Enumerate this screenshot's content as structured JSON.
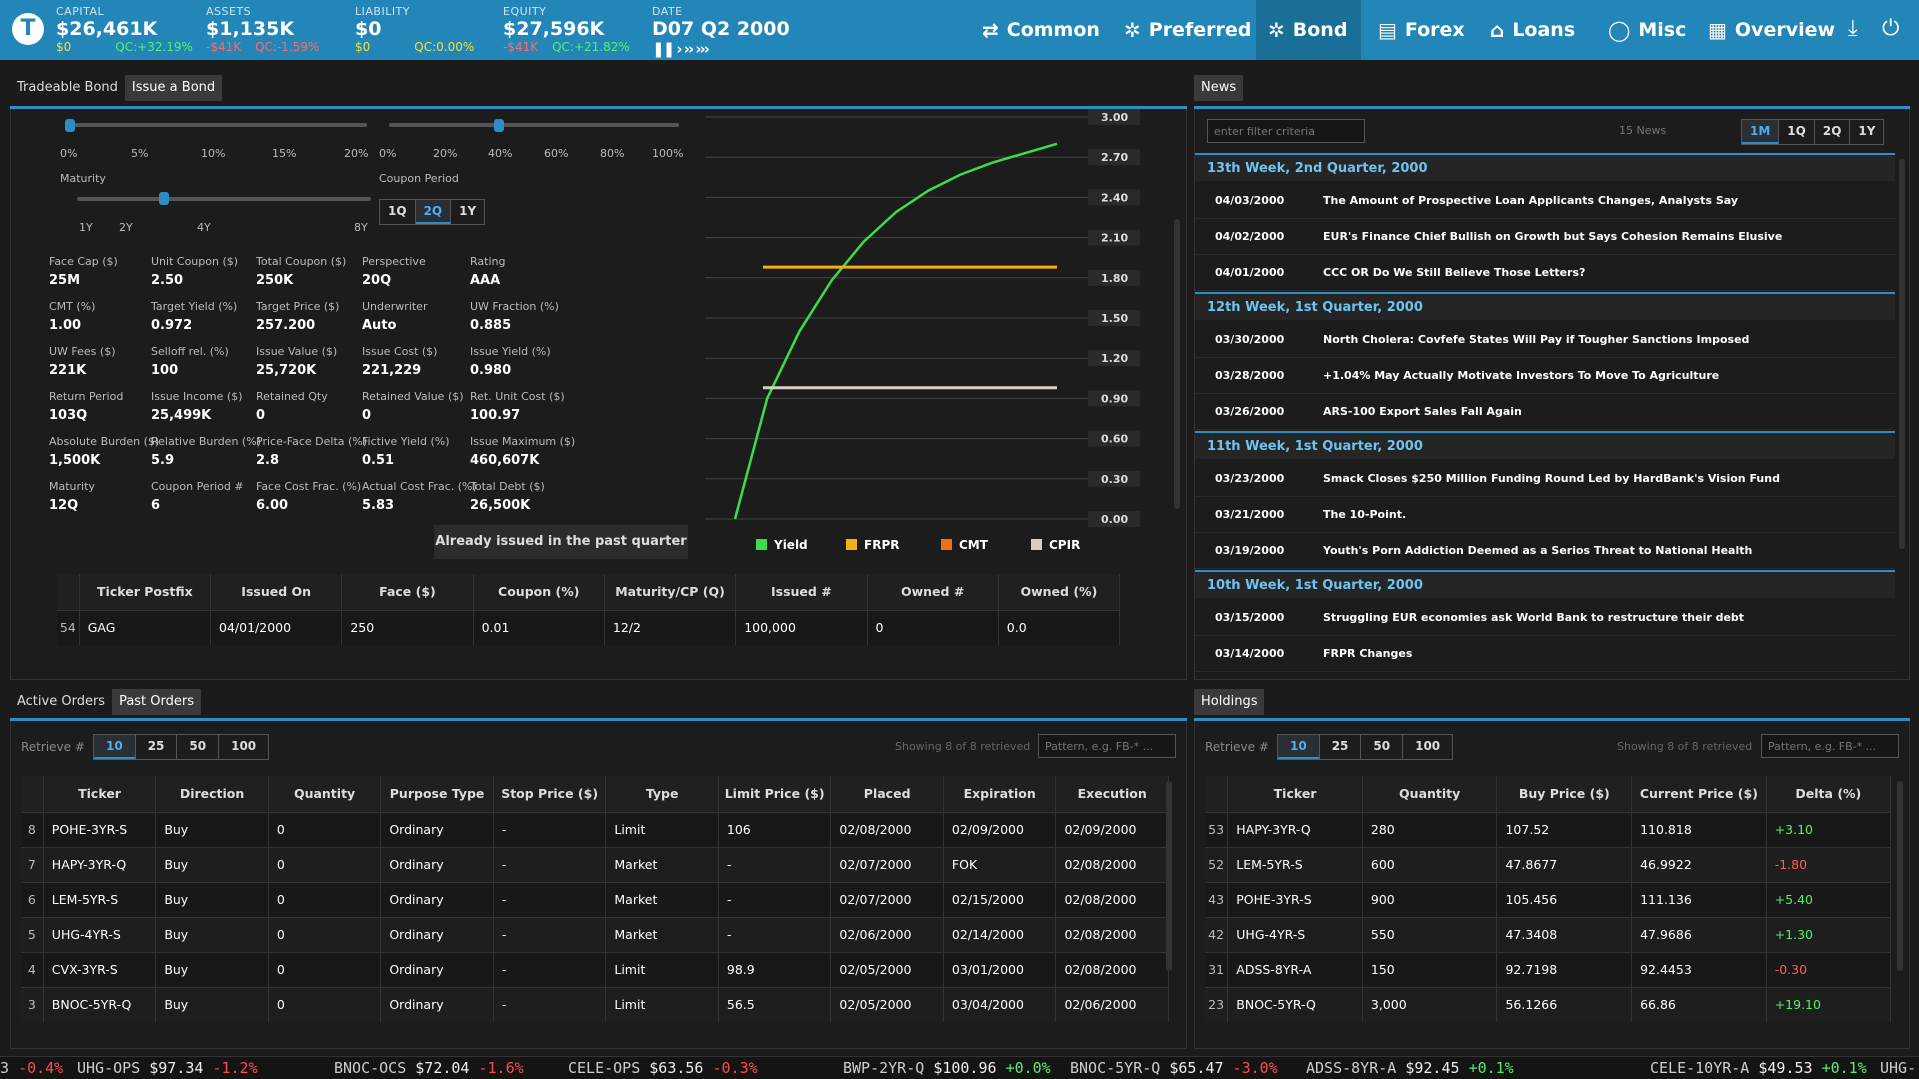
{
  "topbar": {
    "logo": "T",
    "capital": {
      "label": "CAPITAL",
      "value": "$26,461K",
      "sub1": "$0",
      "sub2": "QC:+32.19%"
    },
    "assets": {
      "label": "ASSETS",
      "value": "$1,135K",
      "sub1": "-$41K",
      "sub2": "QC:-1.59%"
    },
    "liability": {
      "label": "LIABILITY",
      "value": "$0",
      "sub1": "$0",
      "sub2": "QC:0.00%"
    },
    "equity": {
      "label": "EQUITY",
      "value": "$27,596K",
      "sub1": "-$41K",
      "sub2": "QC:+21.82%"
    },
    "date": {
      "label": "DATE",
      "value": "D07 Q2 2000",
      "controls": "❚❚ › ›› ›››"
    },
    "nav": [
      {
        "label": "Common",
        "icon": "⇄"
      },
      {
        "label": "Preferred",
        "icon": "✲"
      },
      {
        "label": "Bond",
        "icon": "✲"
      },
      {
        "label": "Forex",
        "icon": "▤"
      },
      {
        "label": "Loans",
        "icon": "⌂"
      },
      {
        "label": "Misc",
        "icon": "◯"
      },
      {
        "label": "Overview",
        "icon": "▦"
      }
    ],
    "icons": [
      "download-icon",
      "power-icon"
    ]
  },
  "issue": {
    "tabs": [
      "Tradeable Bond",
      "Issue a Bond"
    ],
    "slider1_ticks": [
      "0%",
      "5%",
      "10%",
      "15%",
      "20%"
    ],
    "slider2_ticks": [
      "0%",
      "20%",
      "40%",
      "60%",
      "80%",
      "100%"
    ],
    "maturity_label": "Maturity",
    "maturity_ticks": [
      "1Y",
      "2Y",
      "4Y",
      "8Y"
    ],
    "coupon_period_label": "Coupon Period",
    "coupon_period_options": [
      "1Q",
      "2Q",
      "1Y"
    ],
    "fields": [
      [
        "Face Cap ($)",
        "25M"
      ],
      [
        "Unit Coupon ($)",
        "2.50"
      ],
      [
        "Total Coupon ($)",
        "250K"
      ],
      [
        "Perspective",
        "20Q"
      ],
      [
        "Rating",
        "AAA"
      ],
      [
        "CMT (%)",
        "1.00"
      ],
      [
        "Target Yield (%)",
        "0.972"
      ],
      [
        "Target Price ($)",
        "257.200"
      ],
      [
        "Underwriter",
        "Auto"
      ],
      [
        "UW Fraction (%)",
        "0.885"
      ],
      [
        "UW Fees ($)",
        "221K"
      ],
      [
        "Selloff rel. (%)",
        "100"
      ],
      [
        "Issue Value ($)",
        "25,720K"
      ],
      [
        "Issue Cost ($)",
        "221,229"
      ],
      [
        "Issue Yield (%)",
        "0.980"
      ],
      [
        "Return Period",
        "103Q"
      ],
      [
        "Issue Income ($)",
        "25,499K"
      ],
      [
        "Retained Qty",
        "0"
      ],
      [
        "Retained Value ($)",
        "0"
      ],
      [
        "Ret. Unit Cost ($)",
        "100.97"
      ],
      [
        "Absolute Burden ($)",
        "1,500K"
      ],
      [
        "Relative Burden (%)",
        "5.9"
      ],
      [
        "Price-Face Delta (%)",
        "2.8"
      ],
      [
        "Fictive Yield (%)",
        "0.51"
      ],
      [
        "Issue Maximum ($)",
        "460,607K"
      ],
      [
        "Maturity",
        "12Q"
      ],
      [
        "Coupon Period #",
        "6"
      ],
      [
        "Face Cost Frac. (%)",
        "6.00"
      ],
      [
        "Actual Cost Frac. (%)",
        "5.83"
      ],
      [
        "Total Debt ($)",
        "26,500K"
      ]
    ],
    "issue_button": "Already issued in the past quarter",
    "table": {
      "headers": [
        "Ticker Postfix",
        "Issued On",
        "Face ($)",
        "Coupon (%)",
        "Maturity/CP (Q)",
        "Issued #",
        "Owned #",
        "Owned (%)"
      ],
      "rows": [
        [
          "54",
          "GAG",
          "04/01/2000",
          "250",
          "0.01",
          "12/2",
          "100,000",
          "0",
          "0.0"
        ]
      ]
    }
  },
  "chart_data": {
    "type": "line",
    "y_ticks": [
      "3.00",
      "2.70",
      "2.40",
      "2.10",
      "1.80",
      "1.50",
      "1.20",
      "0.90",
      "0.60",
      "0.30",
      "0.00"
    ],
    "ylim": [
      0,
      3
    ],
    "series": [
      {
        "name": "Yield",
        "color": "#3ddc4a",
        "points": [
          [
            0,
            0
          ],
          [
            0.1,
            0.9
          ],
          [
            0.2,
            1.4
          ],
          [
            0.3,
            1.78
          ],
          [
            0.4,
            2.07
          ],
          [
            0.5,
            2.29
          ],
          [
            0.6,
            2.45
          ],
          [
            0.7,
            2.57
          ],
          [
            0.8,
            2.66
          ],
          [
            0.9,
            2.73
          ],
          [
            1,
            2.8
          ]
        ]
      },
      {
        "name": "FRPR",
        "color": "#f0b018",
        "points": [
          [
            0,
            1.88
          ],
          [
            1,
            1.88
          ]
        ]
      },
      {
        "name": "CMT",
        "color": "#f07018",
        "points": []
      },
      {
        "name": "CPIR",
        "color": "#d8cfc0",
        "points": [
          [
            0,
            0.98
          ],
          [
            1,
            0.98
          ]
        ]
      }
    ]
  },
  "news": {
    "tab": "News",
    "filter_placeholder": "enter filter criteria",
    "count": "15 News",
    "range": [
      "1M",
      "1Q",
      "2Q",
      "1Y"
    ],
    "groups": [
      {
        "title": "13th Week, 2nd Quarter, 2000",
        "items": [
          [
            "04/03/2000",
            "The Amount of Prospective Loan Applicants Changes, Analysts Say"
          ],
          [
            "04/02/2000",
            "EUR's Finance Chief Bullish on Growth but Says Cohesion Remains Elusive"
          ],
          [
            "04/01/2000",
            "CCC OR Do We Still Believe Those Letters?"
          ]
        ]
      },
      {
        "title": "12th Week, 1st Quarter, 2000",
        "items": [
          [
            "03/30/2000",
            "North Cholera: Covfefe States Will Pay if Tougher Sanctions Imposed"
          ],
          [
            "03/28/2000",
            "+1.04% May Actually Motivate Investors To Move To Agriculture"
          ],
          [
            "03/26/2000",
            "ARS-100 Export Sales Fall Again"
          ]
        ]
      },
      {
        "title": "11th Week, 1st Quarter, 2000",
        "items": [
          [
            "03/23/2000",
            "Smack Closes $250 Million Funding Round Led by HardBank's Vision Fund"
          ],
          [
            "03/21/2000",
            "The 10-Point."
          ],
          [
            "03/19/2000",
            "Youth's Porn Addiction Deemed as a Serios Threat to National Health"
          ]
        ]
      },
      {
        "title": "10th Week, 1st Quarter, 2000",
        "items": [
          [
            "03/15/2000",
            "Struggling EUR economies ask World Bank to restructure their debt"
          ],
          [
            "03/14/2000",
            "FRPR Changes"
          ]
        ]
      }
    ]
  },
  "orders": {
    "tabs": [
      "Active Orders",
      "Past Orders"
    ],
    "retrieve_label": "Retrieve #",
    "retrieve_options": [
      "10",
      "25",
      "50",
      "100"
    ],
    "showing": "Showing 8 of 8 retrieved",
    "pattern_placeholder": "Pattern, e.g. FB-* ...",
    "headers": [
      "Ticker",
      "Direction",
      "Quantity",
      "Purpose Type",
      "Stop Price ($)",
      "Type",
      "Limit Price ($)",
      "Placed",
      "Expiration",
      "Execution"
    ],
    "rows": [
      [
        "8",
        "POHE-3YR-S",
        "Buy",
        "0",
        "Ordinary",
        "-",
        "Limit",
        "106",
        "02/08/2000",
        "02/09/2000",
        "02/09/2000"
      ],
      [
        "7",
        "HAPY-3YR-Q",
        "Buy",
        "0",
        "Ordinary",
        "-",
        "Market",
        "-",
        "02/07/2000",
        "FOK",
        "02/08/2000"
      ],
      [
        "6",
        "LEM-5YR-S",
        "Buy",
        "0",
        "Ordinary",
        "-",
        "Market",
        "-",
        "02/07/2000",
        "02/15/2000",
        "02/08/2000"
      ],
      [
        "5",
        "UHG-4YR-S",
        "Buy",
        "0",
        "Ordinary",
        "-",
        "Market",
        "-",
        "02/06/2000",
        "02/14/2000",
        "02/08/2000"
      ],
      [
        "4",
        "CVX-3YR-S",
        "Buy",
        "0",
        "Ordinary",
        "-",
        "Limit",
        "98.9",
        "02/05/2000",
        "03/01/2000",
        "02/08/2000"
      ],
      [
        "3",
        "BNOC-5YR-Q",
        "Buy",
        "0",
        "Ordinary",
        "-",
        "Limit",
        "56.5",
        "02/05/2000",
        "03/04/2000",
        "02/06/2000"
      ]
    ]
  },
  "holdings": {
    "tab": "Holdings",
    "retrieve_label": "Retrieve #",
    "retrieve_options": [
      "10",
      "25",
      "50",
      "100"
    ],
    "showing": "Showing 8 of 8 retrieved",
    "pattern_placeholder": "Pattern, e.g. FB-* ...",
    "headers": [
      "Ticker",
      "Quantity",
      "Buy Price ($)",
      "Current Price ($)",
      "Delta (%)"
    ],
    "rows": [
      [
        "53",
        "HAPY-3YR-Q",
        "280",
        "107.52",
        "110.818",
        "+3.10"
      ],
      [
        "52",
        "LEM-5YR-S",
        "600",
        "47.8677",
        "46.9922",
        "-1.80"
      ],
      [
        "43",
        "POHE-3YR-S",
        "900",
        "105.456",
        "111.136",
        "+5.40"
      ],
      [
        "42",
        "UHG-4YR-S",
        "550",
        "47.3408",
        "47.9686",
        "+1.30"
      ],
      [
        "31",
        "ADSS-8YR-A",
        "150",
        "92.7198",
        "92.4453",
        "-0.30"
      ],
      [
        "23",
        "BNOC-5YR-Q",
        "3,000",
        "56.1266",
        "66.86",
        "+19.10"
      ]
    ]
  },
  "ticker": [
    {
      "sym": "3",
      "price": "",
      "chg": "-0.4%"
    },
    {
      "sym": "UHG-OPS",
      "price": "$97.34",
      "chg": "-1.2%"
    },
    {
      "sym": "BNOC-OCS",
      "price": "$72.04",
      "chg": "-1.6%"
    },
    {
      "sym": "CELE-OPS",
      "price": "$63.56",
      "chg": "-0.3%"
    },
    {
      "sym": "BWP-2YR-Q",
      "price": "$100.96",
      "chg": "+0.0%"
    },
    {
      "sym": "BNOC-5YR-Q",
      "price": "$65.47",
      "chg": "-3.0%"
    },
    {
      "sym": "ADSS-8YR-A",
      "price": "$92.45",
      "chg": "+0.1%"
    },
    {
      "sym": "CELE-10YR-A",
      "price": "$49.53",
      "chg": "+0.1%"
    },
    {
      "sym": "UHG-",
      "price": "",
      "chg": ""
    }
  ]
}
